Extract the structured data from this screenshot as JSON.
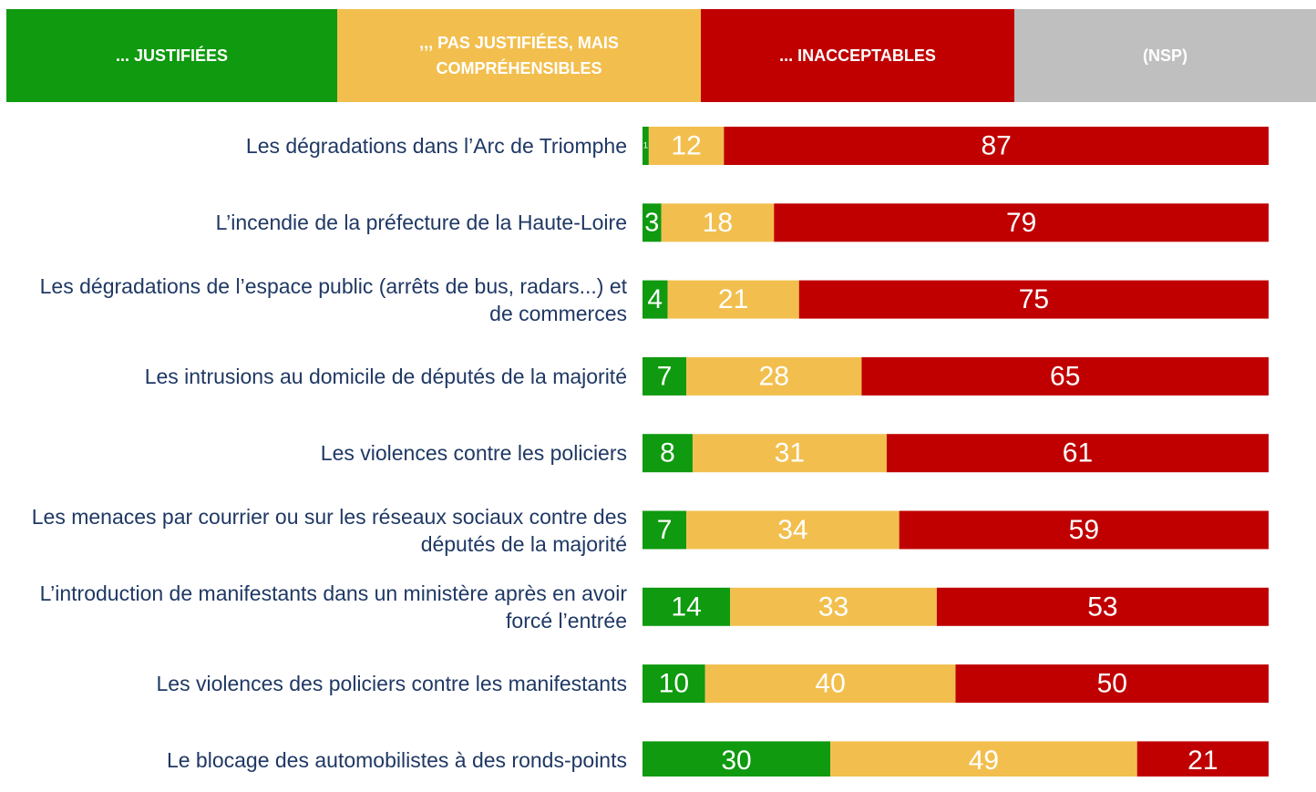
{
  "chart_data": {
    "type": "stacked-bar",
    "orientation": "horizontal",
    "categories": [
      "Les dégradations dans l’Arc de Triomphe",
      "L’incendie de la préfecture de la Haute-Loire",
      "Les dégradations de l’espace public (arrêts de bus, radars...) et de commerces",
      "Les intrusions au domicile de députés de la majorité",
      "Les violences contre les policiers",
      "Les menaces par courrier ou sur les réseaux sociaux contre des députés de la majorité",
      "L’introduction de manifestants dans un ministère après en avoir forcé l’entrée",
      "Les violences des policiers contre les manifestants",
      "Le blocage des automobilistes à des ronds-points"
    ],
    "series": [
      {
        "name": "... JUSTIFIÉES",
        "color": "#0f9a0f",
        "values": [
          1,
          3,
          4,
          7,
          8,
          7,
          14,
          10,
          30
        ]
      },
      {
        "name": ",,, PAS JUSTIFIÉES, MAIS COMPRÉHENSIBLES",
        "color": "#f2bf4e",
        "values": [
          12,
          18,
          21,
          28,
          31,
          34,
          33,
          40,
          49
        ]
      },
      {
        "name": "... INACCEPTABLES",
        "color": "#c00000",
        "values": [
          87,
          79,
          75,
          65,
          61,
          59,
          53,
          50,
          21
        ]
      },
      {
        "name": "(NSP)",
        "color": "#bfbfbf",
        "values": [
          null,
          null,
          null,
          null,
          null,
          null,
          null,
          null,
          null
        ]
      }
    ],
    "xlim": [
      0,
      100
    ]
  }
}
